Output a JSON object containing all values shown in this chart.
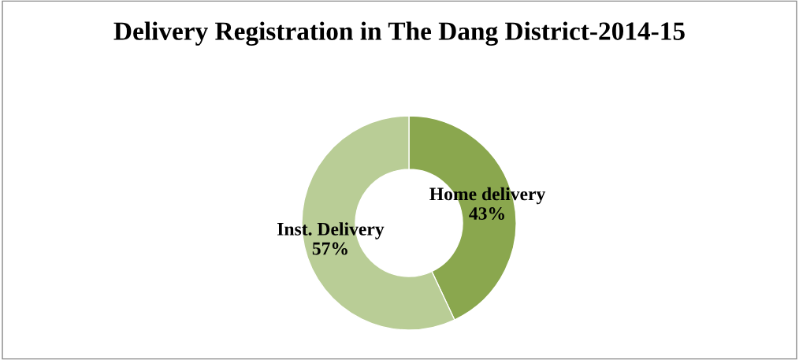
{
  "chart_data": {
    "type": "donut",
    "title": "Delivery Registration in The Dang District-2014-15",
    "categories": [
      "Home delivery",
      "Inst. Delivery"
    ],
    "values": [
      43,
      57
    ],
    "colors": [
      "#8aa74e",
      "#b9cd96"
    ],
    "value_labels": [
      "43%",
      "57%"
    ]
  }
}
